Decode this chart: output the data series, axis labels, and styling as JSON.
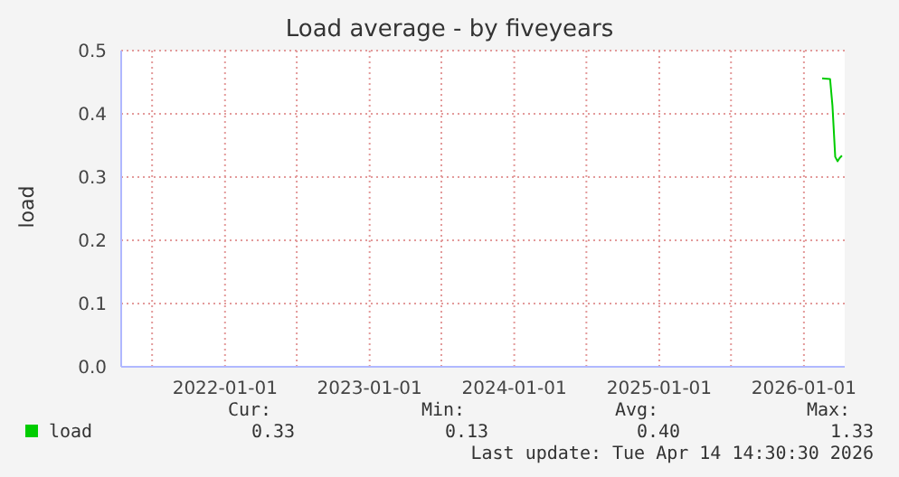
{
  "chart_data": {
    "type": "line",
    "title": "Load average - by fiveyears",
    "ylabel": "load",
    "x": [
      "2026-02-16",
      "2026-03-08",
      "2026-03-14",
      "2026-03-21",
      "2026-03-27",
      "2026-04-01",
      "2026-04-07"
    ],
    "series": [
      {
        "name": "load",
        "color": "#00cc00",
        "values": [
          0.456,
          0.455,
          0.413,
          0.332,
          0.325,
          0.33,
          0.334
        ]
      }
    ],
    "xlim": [
      "2021-04-14",
      "2026-04-14"
    ],
    "xticks": [
      {
        "value": "2021-07-01",
        "label": null
      },
      {
        "value": "2022-01-01",
        "label": "2022-01-01"
      },
      {
        "value": "2022-07-01",
        "label": null
      },
      {
        "value": "2023-01-01",
        "label": "2023-01-01"
      },
      {
        "value": "2023-07-01",
        "label": null
      },
      {
        "value": "2024-01-01",
        "label": "2024-01-01"
      },
      {
        "value": "2024-07-01",
        "label": null
      },
      {
        "value": "2025-01-01",
        "label": "2025-01-01"
      },
      {
        "value": "2025-07-01",
        "label": null
      },
      {
        "value": "2026-01-01",
        "label": "2026-01-01"
      }
    ],
    "ylim": [
      0,
      0.5
    ],
    "yticks": [
      {
        "value": 0,
        "label": "0.0"
      },
      {
        "value": 0.1,
        "label": "0.1"
      },
      {
        "value": 0.2,
        "label": "0.2"
      },
      {
        "value": 0.3,
        "label": "0.3"
      },
      {
        "value": 0.4,
        "label": "0.4"
      },
      {
        "value": 0.5,
        "label": "0.5"
      }
    ],
    "grid": true,
    "legend": "bottom left",
    "marker": "none",
    "line_style": "solid",
    "annotations": [
      "Cur:",
      "Min:",
      "Avg:",
      "Max:",
      "0.33",
      "0.13",
      "0.40",
      "1.33",
      "Last update: Tue Apr 14 14:30:30 2026"
    ]
  }
}
